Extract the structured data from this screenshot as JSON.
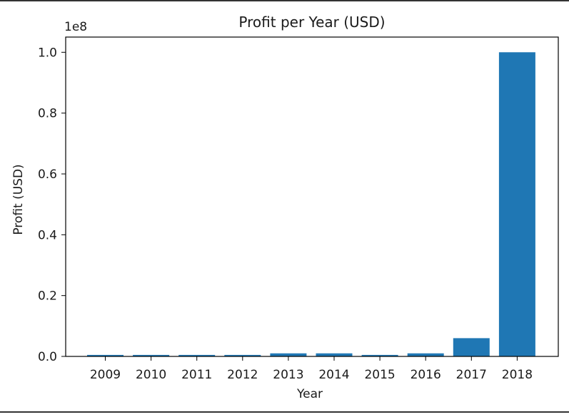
{
  "chart_data": {
    "type": "bar",
    "title": "Profit per Year (USD)",
    "xlabel": "Year",
    "ylabel": "Profit (USD)",
    "offset_label": "1e8",
    "categories": [
      "2009",
      "2010",
      "2011",
      "2012",
      "2013",
      "2014",
      "2015",
      "2016",
      "2017",
      "2018"
    ],
    "values": [
      500000,
      500000,
      500000,
      500000,
      1000000,
      1000000,
      500000,
      1000000,
      6000000,
      100000000
    ],
    "ylim": [
      0,
      105000000
    ],
    "yticks": [
      0,
      20000000,
      40000000,
      60000000,
      80000000,
      100000000
    ],
    "ytick_labels": [
      "0.0",
      "0.2",
      "0.4",
      "0.6",
      "0.8",
      "1.0"
    ],
    "bar_color": "#1f77b4",
    "grid": false,
    "legend": "none"
  }
}
